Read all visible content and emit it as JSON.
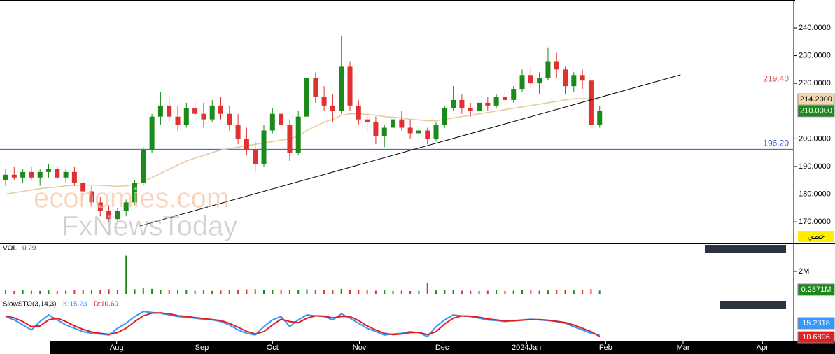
{
  "chart_data": {
    "type": "candlestick",
    "up_color": "#1a8a1a",
    "down_color": "#e03030",
    "watermark": [
      "economies.com",
      "FxNewsToday"
    ],
    "mode_label": "خطي",
    "xlim": [
      -0.65,
      91.46
    ],
    "xticks": [
      {
        "value": 12.9,
        "label": "Aug"
      },
      {
        "value": 22.8,
        "label": "Sep"
      },
      {
        "value": 31.0,
        "label": "Oct"
      },
      {
        "value": 41.1,
        "label": "Nov"
      },
      {
        "value": 50.7,
        "label": "Dec"
      },
      {
        "value": 60.5,
        "label": "2024Jan"
      },
      {
        "value": 69.7,
        "label": "Feb"
      },
      {
        "value": 78.7,
        "label": "Mar"
      },
      {
        "value": 87.9,
        "label": "Apr"
      }
    ],
    "ylim": [
      162.2,
      250.1
    ],
    "yticks": [
      {
        "value": 170,
        "label": "170.0000"
      },
      {
        "value": 180,
        "label": "180.0000"
      },
      {
        "value": 190,
        "label": "190.0000"
      },
      {
        "value": 200,
        "label": "200.0000"
      },
      {
        "value": 220,
        "label": "220.0000"
      },
      {
        "value": 230,
        "label": "230.0000"
      },
      {
        "value": 240,
        "label": "240.0000"
      }
    ],
    "candles": {
      "open": [
        185,
        187,
        186,
        188,
        186,
        188,
        189,
        186,
        188,
        184,
        181,
        177,
        174,
        171,
        174,
        177,
        184,
        196,
        208,
        212,
        208,
        205,
        211,
        209,
        207,
        212,
        209,
        205,
        200,
        196,
        191,
        203,
        209,
        205,
        195,
        208,
        222,
        215,
        212,
        210,
        226,
        212,
        207,
        206,
        201,
        204,
        207,
        204,
        202,
        203,
        200,
        205,
        211,
        214,
        211,
        210,
        213,
        212,
        215,
        214,
        218,
        223,
        220,
        222,
        228,
        225,
        219,
        223,
        221,
        205
      ],
      "high": [
        189,
        190,
        189,
        190,
        189,
        191,
        190,
        189,
        190,
        186,
        183,
        179,
        176,
        175,
        178,
        185,
        197,
        209,
        217,
        215,
        212,
        213,
        214,
        213,
        214,
        215,
        212,
        209,
        204,
        199,
        205,
        211,
        210,
        207,
        210,
        229,
        224,
        219,
        216,
        237,
        228,
        214,
        210,
        208,
        205,
        209,
        210,
        207,
        205,
        204,
        206,
        212,
        219,
        216,
        213,
        214,
        215,
        216,
        218,
        219,
        225,
        226,
        224,
        233,
        231,
        226,
        224,
        225,
        222,
        212
      ],
      "low": [
        183,
        185,
        184,
        185,
        183,
        186,
        185,
        184,
        183,
        180,
        176,
        172,
        170,
        170,
        172,
        176,
        183,
        195,
        205,
        206,
        203,
        204,
        207,
        204,
        206,
        207,
        203,
        198,
        194,
        188,
        190,
        202,
        203,
        192,
        194,
        207,
        213,
        210,
        206,
        209,
        210,
        205,
        202,
        198,
        197,
        203,
        203,
        200,
        199,
        198,
        199,
        204,
        210,
        209,
        208,
        209,
        210,
        211,
        213,
        213,
        217,
        218,
        216,
        221,
        222,
        216,
        217,
        218,
        203,
        204
      ],
      "close": [
        187,
        186,
        188,
        186,
        188,
        189,
        186,
        188,
        184,
        181,
        177,
        174,
        171,
        174,
        177,
        184,
        196,
        208,
        212,
        208,
        205,
        211,
        209,
        207,
        212,
        209,
        205,
        200,
        196,
        191,
        203,
        209,
        205,
        195,
        208,
        222,
        215,
        212,
        210,
        226,
        212,
        207,
        206,
        201,
        204,
        207,
        204,
        202,
        203,
        200,
        205,
        211,
        214,
        211,
        210,
        213,
        212,
        215,
        214,
        218,
        223,
        220,
        222,
        228,
        225,
        219,
        223,
        221,
        205,
        210
      ],
      "last_label": "210.0000"
    },
    "ma": {
      "color": "#e6c99a",
      "last_label": "214.2000",
      "values": [
        180,
        180.5,
        181,
        181.5,
        182,
        182.3,
        182.6,
        183,
        183.2,
        183.3,
        183.3,
        183.2,
        183,
        182.8,
        183,
        183.5,
        184.5,
        186,
        187.5,
        189,
        190.5,
        192,
        193,
        194,
        195,
        196,
        196.5,
        197,
        197.5,
        198,
        198.5,
        199,
        199.5,
        200,
        201,
        203,
        204.5,
        206,
        207,
        208.5,
        209,
        209,
        208.8,
        208.5,
        208,
        207.8,
        207.5,
        207,
        206.8,
        206.5,
        206.5,
        207,
        207.5,
        208,
        208.5,
        209,
        209.5,
        210,
        210.5,
        211,
        211.5,
        212,
        212.5,
        213,
        213.5,
        214,
        214.5,
        214.5,
        214.3,
        214.2
      ]
    },
    "levels": [
      {
        "value": 219.4,
        "label": "219.40",
        "color": "#e05050"
      },
      {
        "value": 196.2,
        "label": "196.20",
        "color": "#3050e0"
      }
    ],
    "trendline": {
      "x": [
        15.6,
        78.4
      ],
      "values": [
        168.5,
        223.1
      ],
      "color": "#000000"
    },
    "volume": {
      "title": "VOL",
      "header_value": "0.29",
      "tag": "0.2871M",
      "ylim": [
        0,
        3625000
      ],
      "yticks": [
        {
          "value": 2000000,
          "label": "2M"
        }
      ],
      "values": [
        300000,
        250000,
        320000,
        280000,
        260000,
        300000,
        240000,
        280000,
        310000,
        350000,
        300000,
        380000,
        420000,
        360000,
        3400000,
        420000,
        500000,
        450000,
        380000,
        350000,
        300000,
        320000,
        280000,
        300000,
        260000,
        290000,
        330000,
        380000,
        400000,
        420000,
        360000,
        330000,
        300000,
        380000,
        340000,
        420000,
        380000,
        330000,
        300000,
        450000,
        380000,
        320000,
        300000,
        280000,
        300000,
        260000,
        280000,
        250000,
        270000,
        1000000,
        300000,
        350000,
        320000,
        280000,
        270000,
        260000,
        280000,
        300000,
        260000,
        280000,
        320000,
        300000,
        280000,
        300000,
        320000,
        340000,
        300000,
        380000,
        420000,
        287100
      ]
    },
    "stochastic": {
      "title": "SlowSTO(3,14,3)",
      "ylim": [
        0,
        100
      ],
      "k": {
        "name": "K",
        "header": "K:15.23",
        "tag": "15.2318",
        "color": "#3399ff",
        "values": [
          70,
          60,
          45,
          30,
          55,
          75,
          60,
          45,
          35,
          25,
          20,
          18,
          15,
          35,
          50,
          70,
          85,
          82,
          80,
          75,
          70,
          68,
          65,
          62,
          60,
          55,
          45,
          30,
          20,
          15,
          40,
          60,
          70,
          40,
          60,
          75,
          72,
          70,
          60,
          78,
          65,
          50,
          35,
          25,
          15,
          18,
          20,
          25,
          22,
          10,
          40,
          60,
          75,
          72,
          70,
          65,
          60,
          58,
          55,
          58,
          60,
          62,
          60,
          58,
          55,
          50,
          40,
          30,
          20,
          15.2318
        ]
      },
      "d": {
        "name": "D",
        "header": "D:10.69",
        "tag": "10.6896",
        "color": "#e02020",
        "values": [
          72,
          66,
          55,
          40,
          42,
          60,
          65,
          55,
          42,
          32,
          24,
          20,
          17,
          22,
          35,
          55,
          72,
          80,
          81,
          78,
          73,
          70,
          67,
          64,
          61,
          58,
          50,
          38,
          26,
          18,
          25,
          45,
          62,
          55,
          52,
          65,
          72,
          71,
          66,
          70,
          70,
          58,
          42,
          30,
          20,
          16,
          18,
          22,
          23,
          16,
          25,
          48,
          65,
          72,
          71,
          68,
          63,
          60,
          57,
          57,
          59,
          61,
          61,
          59,
          56,
          52,
          45,
          35,
          25,
          10.6896
        ]
      }
    }
  }
}
